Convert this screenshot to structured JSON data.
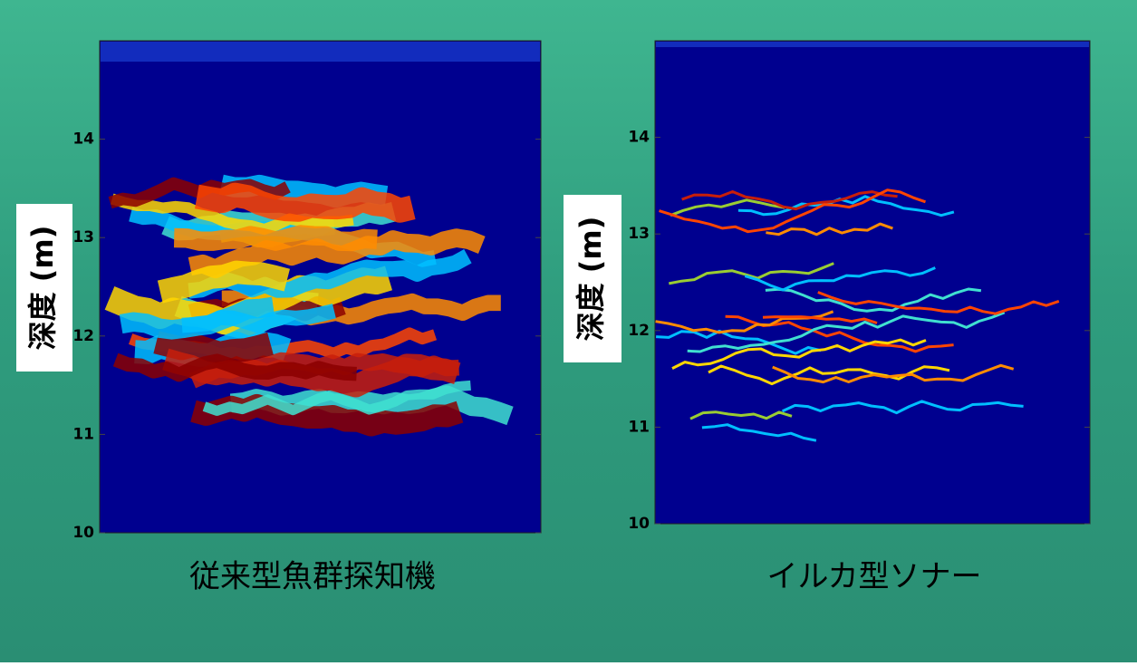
{
  "chart_data": [
    {
      "type": "echogram",
      "title": "従来型魚群探知機",
      "ylabel": "深度 (m)",
      "ylim": [
        10,
        15
      ],
      "yticks": [
        10,
        11,
        12,
        13,
        14
      ],
      "style": "wide"
    },
    {
      "type": "echogram",
      "title": "イルカ型ソナー",
      "ylabel": "深度 (m)",
      "ylim": [
        10,
        15
      ],
      "yticks": [
        10,
        11,
        12,
        13,
        14
      ],
      "style": "thin"
    }
  ]
}
